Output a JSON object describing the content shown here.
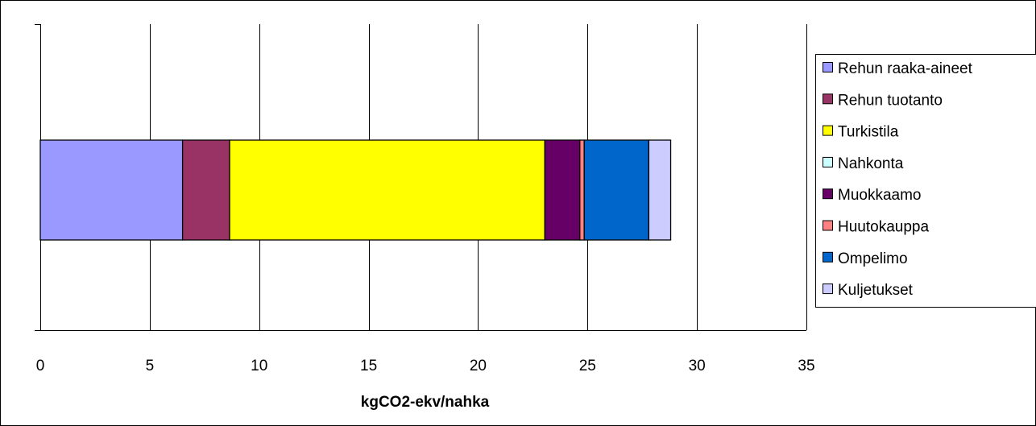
{
  "chart_data": {
    "type": "bar",
    "orientation": "horizontal",
    "stacked": true,
    "title": "",
    "xlabel": "kgCO2-ekv/nahka",
    "ylabel": "",
    "xlim": [
      0,
      35
    ],
    "xticks": [
      0,
      5,
      10,
      15,
      20,
      25,
      30,
      35
    ],
    "grid": "vertical",
    "legend_position": "right",
    "series": [
      {
        "name": "Rehun raaka-aineet",
        "value": 6.5,
        "color": "#9999FF"
      },
      {
        "name": "Rehun tuotanto",
        "value": 2.15,
        "color": "#993366"
      },
      {
        "name": "Turkistila",
        "value": 14.4,
        "color": "#FFFF00"
      },
      {
        "name": "Nahkonta",
        "value": 0.0,
        "color": "#CCFFFF"
      },
      {
        "name": "Muokkaamo",
        "value": 1.6,
        "color": "#660066"
      },
      {
        "name": "Huutokauppa",
        "value": 0.2,
        "color": "#FF8080"
      },
      {
        "name": "Ompelimo",
        "value": 2.95,
        "color": "#0066CC"
      },
      {
        "name": "Kuljetukset",
        "value": 1.0,
        "color": "#CCCCFF"
      }
    ]
  }
}
